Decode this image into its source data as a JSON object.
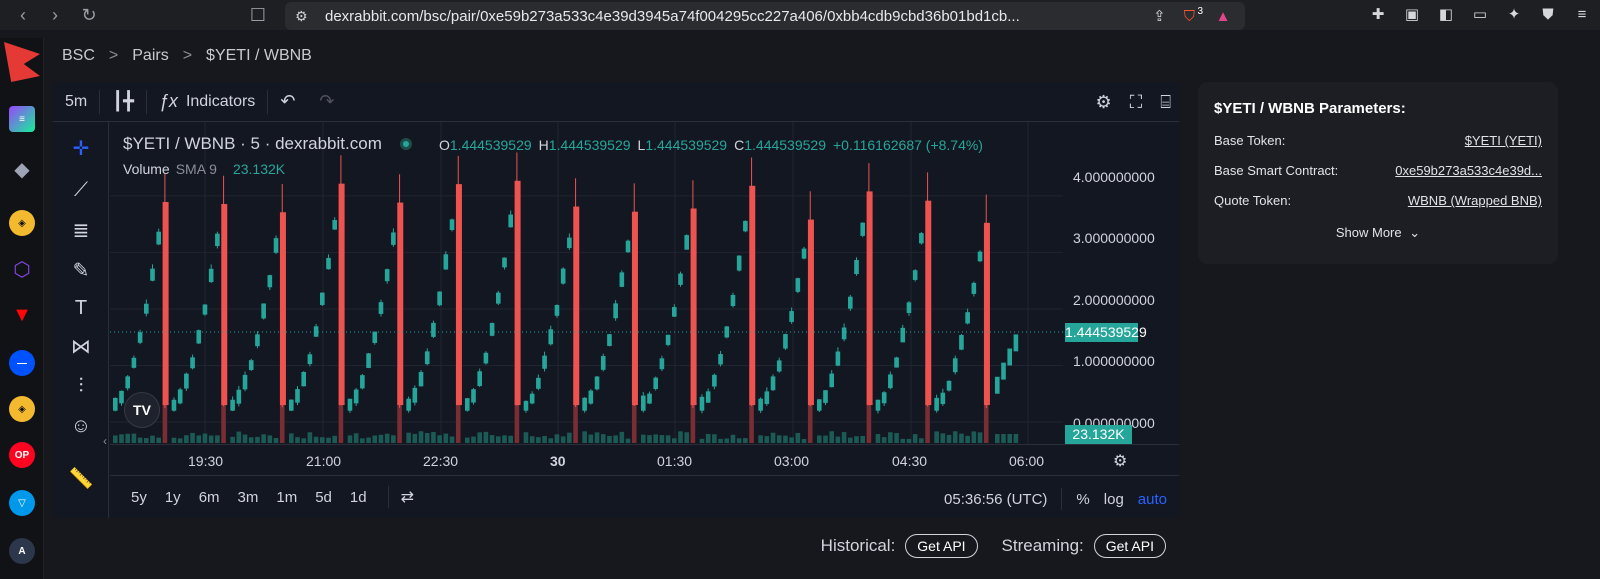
{
  "browser": {
    "url": "dexrabbit.com/bsc/pair/0xe59b273a533c4e39d3945a74f004295cc227a406/0xbb4cdb9cbd36b01bd1cb...",
    "shield_count": "3"
  },
  "breadcrumb": {
    "items": [
      "BSC",
      "Pairs",
      "$YETI / WBNB"
    ],
    "separator": ">"
  },
  "toolbar": {
    "interval": "5m",
    "indicators": "Indicators"
  },
  "legend": {
    "title": "$YETI / WBNB · 5 · dexrabbit.com",
    "o_label": "O",
    "o": "1.444539529",
    "h_label": "H",
    "h": "1.444539529",
    "l_label": "L",
    "l": "1.444539529",
    "c_label": "C",
    "c": "1.444539529",
    "change": "+0.116162687 (+8.74%)",
    "volume_label": "Volume",
    "volume_sma": "SMA 9",
    "volume_value": "23.132K"
  },
  "price_axis": [
    "4.000000000",
    "3.000000000",
    "2.000000000",
    "1.000000000",
    "0.000000000"
  ],
  "current_price": "1.444539529",
  "current_volume": "23.132K",
  "time_axis": [
    "19:30",
    "21:00",
    "22:30",
    "30",
    "01:30",
    "03:00",
    "04:30",
    "06:00"
  ],
  "ranges": [
    "5y",
    "1y",
    "6m",
    "3m",
    "1m",
    "5d",
    "1d"
  ],
  "clock": "05:36:56 (UTC)",
  "scale_options": [
    "%",
    "log",
    "auto"
  ],
  "params": {
    "title": "$YETI / WBNB Parameters:",
    "rows": [
      {
        "label": "Base Token:",
        "value": "$YETI (YETI)"
      },
      {
        "label": "Base Smart Contract:",
        "value": "0xe59b273a533c4e39d..."
      },
      {
        "label": "Quote Token:",
        "value": "WBNB (Wrapped BNB)"
      }
    ],
    "show_more": "Show More"
  },
  "api": {
    "historical": "Historical:",
    "streaming": "Streaming:",
    "button": "Get API"
  },
  "colors": {
    "up": "#26a69a",
    "down": "#ef5350",
    "bg": "#131722"
  },
  "chart_data": {
    "type": "candlestick",
    "y_range": [
      0,
      4.3
    ],
    "cycles": 15,
    "last_close": 1.444539529
  }
}
